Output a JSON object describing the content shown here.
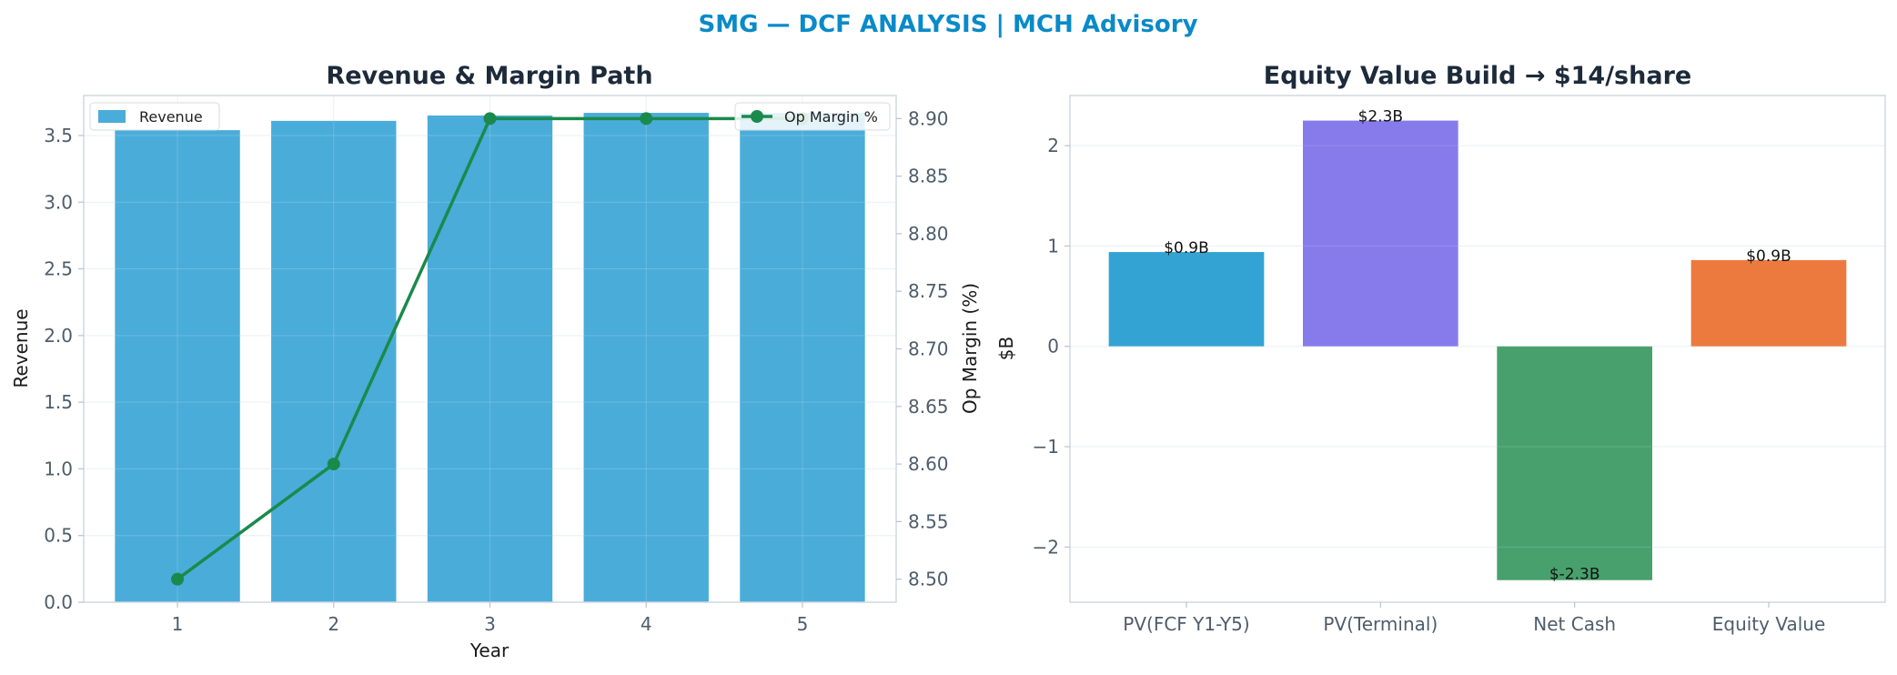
{
  "figure": {
    "title": "SMG — DCF ANALYSIS | MCH Advisory"
  },
  "chart_data": [
    {
      "type": "bar",
      "title": "Revenue & Margin Path",
      "xlabel": "Year",
      "ylabel": "Revenue",
      "y2label": "Op Margin (%)",
      "categories": [
        "1",
        "2",
        "3",
        "4",
        "5"
      ],
      "series": [
        {
          "name": "Revenue",
          "type": "bar",
          "values": [
            3.54,
            3.61,
            3.65,
            3.67,
            3.67
          ],
          "color": "#4aacd9"
        },
        {
          "name": "Op Margin %",
          "type": "line",
          "axis": "right",
          "values": [
            8.5,
            8.6,
            8.9,
            8.9,
            8.9
          ],
          "color": "#1a8a4c"
        }
      ],
      "ylim": [
        0,
        3.8
      ],
      "y2lim": [
        8.48,
        8.92
      ],
      "yticks": [
        "0.0",
        "0.5",
        "1.0",
        "1.5",
        "2.0",
        "2.5",
        "3.0",
        "3.5"
      ],
      "y2ticks": [
        "8.50",
        "8.55",
        "8.60",
        "8.65",
        "8.70",
        "8.75",
        "8.80",
        "8.85",
        "8.90"
      ],
      "grid": true,
      "legends": {
        "bar": "top-left",
        "line": "top-right"
      }
    },
    {
      "type": "bar",
      "title": "Equity Value Build → $14/share",
      "xlabel": "",
      "ylabel": "$B",
      "categories": [
        "PV(FCF Y1-Y5)",
        "PV(Terminal)",
        "Net Cash",
        "Equity Value"
      ],
      "values": [
        0.94,
        2.25,
        -2.33,
        0.86
      ],
      "labels": [
        "$0.9B",
        "$2.3B",
        "$-2.3B",
        "$0.9B"
      ],
      "colors": [
        "#33a3d4",
        "#877bec",
        "#48a16d",
        "#ec7a3e"
      ],
      "ylim": [
        -2.55,
        2.5
      ],
      "yticks": [
        "−2",
        "−1",
        "0",
        "1",
        "2"
      ],
      "grid": true
    }
  ]
}
